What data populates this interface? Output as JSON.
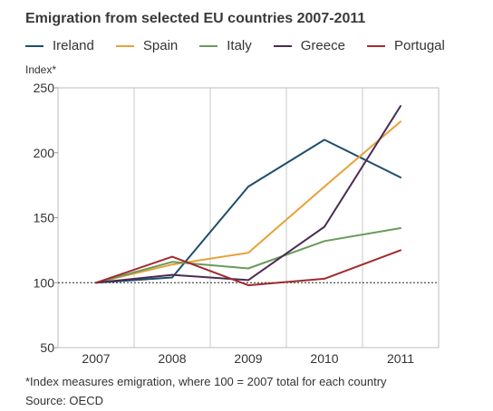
{
  "chart_data": {
    "type": "line",
    "title": "Emigration from selected EU countries 2007-2011",
    "ylabel": "Index*",
    "xlabel": "",
    "categories": [
      "2007",
      "2008",
      "2009",
      "2010",
      "2011"
    ],
    "ylim": [
      50,
      250
    ],
    "yticks": [
      50,
      100,
      150,
      200,
      250
    ],
    "reference_line": 100,
    "grid": "vertical",
    "legend_position": "top",
    "series": [
      {
        "name": "Ireland",
        "color": "#1f4e6b",
        "values": [
          100,
          104,
          174,
          210,
          181
        ]
      },
      {
        "name": "Spain",
        "color": "#e8a13a",
        "values": [
          100,
          114,
          123,
          174,
          224
        ]
      },
      {
        "name": "Italy",
        "color": "#6a9a5b",
        "values": [
          100,
          116,
          111,
          132,
          142
        ]
      },
      {
        "name": "Greece",
        "color": "#4a2a55",
        "values": [
          100,
          106,
          102,
          143,
          236
        ]
      },
      {
        "name": "Portugal",
        "color": "#a02a2e",
        "values": [
          100,
          120,
          98,
          103,
          125
        ]
      }
    ],
    "footnote": "*Index measures emigration, where 100 = 2007 total for each country",
    "source": "Source: OECD"
  }
}
